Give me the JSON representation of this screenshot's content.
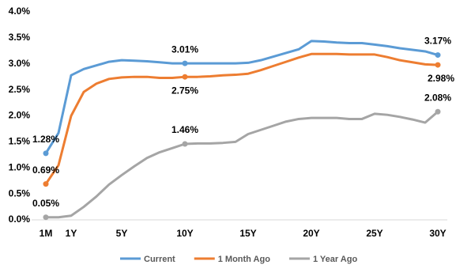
{
  "chart_data": {
    "type": "line",
    "categories": [
      "1M",
      null,
      "1Y",
      null,
      null,
      null,
      "5Y",
      null,
      null,
      null,
      null,
      "10Y",
      null,
      null,
      null,
      null,
      "15Y",
      null,
      null,
      null,
      null,
      "20Y",
      null,
      null,
      null,
      null,
      "25Y",
      null,
      null,
      null,
      null,
      "30Y"
    ],
    "series": [
      {
        "name": "Current",
        "color": "#5b9bd5",
        "label_color": "#2f5597",
        "values": [
          1.28,
          1.67,
          2.78,
          2.9,
          2.97,
          3.04,
          3.07,
          3.06,
          3.05,
          3.03,
          3.01,
          3.01,
          3.01,
          3.01,
          3.01,
          3.01,
          3.02,
          3.07,
          3.14,
          3.21,
          3.28,
          3.44,
          3.43,
          3.41,
          3.4,
          3.4,
          3.37,
          3.34,
          3.3,
          3.27,
          3.24,
          3.17
        ],
        "value_labels": [
          "1.28%",
          null,
          null,
          null,
          null,
          null,
          null,
          null,
          null,
          null,
          null,
          "3.01%",
          null,
          null,
          null,
          null,
          null,
          null,
          null,
          null,
          null,
          null,
          null,
          null,
          null,
          null,
          null,
          null,
          null,
          null,
          null,
          "3.17%"
        ]
      },
      {
        "name": "1 Month Ago",
        "color": "#ed7d31",
        "label_color": "#c55a11",
        "values": [
          0.69,
          1.05,
          2.0,
          2.46,
          2.62,
          2.71,
          2.74,
          2.75,
          2.75,
          2.73,
          2.73,
          2.75,
          2.75,
          2.76,
          2.78,
          2.79,
          2.81,
          2.88,
          2.96,
          3.04,
          3.12,
          3.19,
          3.19,
          3.19,
          3.18,
          3.18,
          3.18,
          3.13,
          3.07,
          3.03,
          2.99,
          2.98
        ],
        "value_labels": [
          "0.69%",
          null,
          null,
          null,
          null,
          null,
          null,
          null,
          null,
          null,
          null,
          "2.75%",
          null,
          null,
          null,
          null,
          null,
          null,
          null,
          null,
          null,
          null,
          null,
          null,
          null,
          null,
          null,
          null,
          null,
          null,
          null,
          "2.98%"
        ]
      },
      {
        "name": "1 Year Ago",
        "color": "#a5a5a5",
        "label_color": "#7f7f7f",
        "values": [
          0.05,
          0.05,
          0.08,
          0.25,
          0.45,
          0.68,
          0.86,
          1.03,
          1.19,
          1.3,
          1.38,
          1.46,
          1.47,
          1.47,
          1.48,
          1.5,
          1.65,
          1.73,
          1.81,
          1.89,
          1.94,
          1.96,
          1.96,
          1.96,
          1.94,
          1.94,
          2.04,
          2.02,
          1.98,
          1.93,
          1.87,
          2.08
        ],
        "value_labels": [
          "0.05%",
          null,
          null,
          null,
          null,
          null,
          null,
          null,
          null,
          null,
          null,
          "1.46%",
          null,
          null,
          null,
          null,
          null,
          null,
          null,
          null,
          null,
          null,
          null,
          null,
          null,
          null,
          null,
          null,
          null,
          null,
          null,
          "2.08%"
        ]
      }
    ],
    "ylim": [
      0,
      4
    ],
    "yticks": [
      {
        "value": 0,
        "label": "0.0%"
      },
      {
        "value": 0.5,
        "label": "0.5%"
      },
      {
        "value": 1,
        "label": "1.0%"
      },
      {
        "value": 1.5,
        "label": "1.5%"
      },
      {
        "value": 2,
        "label": "2.0%"
      },
      {
        "value": 2.5,
        "label": "2.5%"
      },
      {
        "value": 3,
        "label": "3.0%"
      },
      {
        "value": 3.5,
        "label": "3.5%"
      },
      {
        "value": 4,
        "label": "4.0%"
      }
    ],
    "grid": false,
    "legend": "bottom"
  }
}
